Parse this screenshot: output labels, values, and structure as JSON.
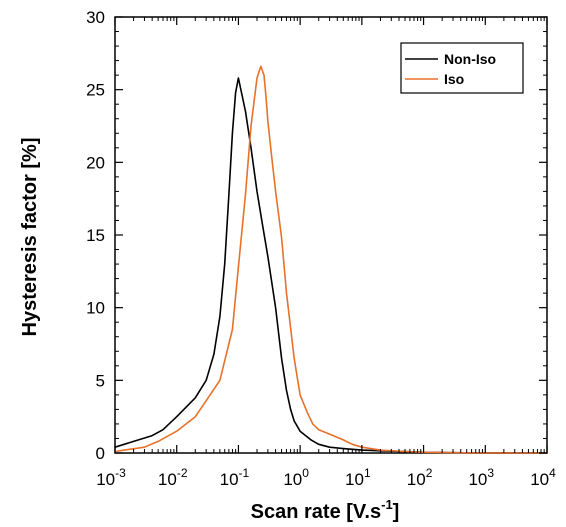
{
  "chart_data": {
    "type": "line",
    "xlabel": "Scan rate [V.s",
    "xlabel_sup": "-1",
    "xlabel_end": "]",
    "ylabel": "Hysteresis factor [%]",
    "xscale": "log",
    "xlim": [
      0.001,
      10000
    ],
    "ylim": [
      0,
      30
    ],
    "y_ticks": [
      0,
      5,
      10,
      15,
      20,
      25,
      30
    ],
    "x_ticks": [
      {
        "base": "10",
        "exp": "-3"
      },
      {
        "base": "10",
        "exp": "-2"
      },
      {
        "base": "10",
        "exp": "-1"
      },
      {
        "base": "10",
        "exp": "0"
      },
      {
        "base": "10",
        "exp": "1"
      },
      {
        "base": "10",
        "exp": "2"
      },
      {
        "base": "10",
        "exp": "3"
      },
      {
        "base": "10",
        "exp": "4"
      }
    ],
    "legend_position": "top-right",
    "grid": false,
    "series": [
      {
        "name": "Non-Iso",
        "color": "#000000",
        "x": [
          0.001,
          0.002,
          0.004,
          0.006,
          0.01,
          0.02,
          0.03,
          0.04,
          0.05,
          0.06,
          0.07,
          0.08,
          0.09,
          0.1,
          0.13,
          0.16,
          0.2,
          0.25,
          0.3,
          0.4,
          0.5,
          0.6,
          0.7,
          0.8,
          1,
          1.5,
          2,
          3,
          5,
          10,
          20,
          50,
          100,
          1000,
          10000
        ],
        "y": [
          0.4,
          0.8,
          1.2,
          1.6,
          2.5,
          3.8,
          5.0,
          6.8,
          9.4,
          13.0,
          17.8,
          22.0,
          24.8,
          25.8,
          23.5,
          21.0,
          18.0,
          15.5,
          13.5,
          10.0,
          6.5,
          4.3,
          3.0,
          2.2,
          1.5,
          0.9,
          0.6,
          0.4,
          0.3,
          0.2,
          0.15,
          0.1,
          0.05,
          0.0,
          0.0
        ]
      },
      {
        "name": "Iso",
        "color": "#E8712A",
        "x": [
          0.001,
          0.003,
          0.005,
          0.01,
          0.02,
          0.03,
          0.05,
          0.08,
          0.1,
          0.13,
          0.16,
          0.2,
          0.23,
          0.26,
          0.28,
          0.3,
          0.35,
          0.4,
          0.5,
          0.6,
          0.8,
          1,
          1.3,
          1.6,
          2,
          3,
          5,
          7,
          10,
          20,
          50,
          100,
          1000,
          10000
        ],
        "y": [
          0.1,
          0.4,
          0.8,
          1.5,
          2.5,
          3.6,
          5.0,
          8.5,
          12.8,
          17.8,
          22.5,
          25.8,
          26.6,
          26.0,
          24.5,
          22.8,
          20.2,
          18.0,
          14.8,
          11.0,
          6.5,
          4.0,
          2.8,
          2.0,
          1.6,
          1.3,
          0.9,
          0.6,
          0.4,
          0.2,
          0.1,
          0.05,
          0.0,
          0.0
        ]
      }
    ]
  }
}
